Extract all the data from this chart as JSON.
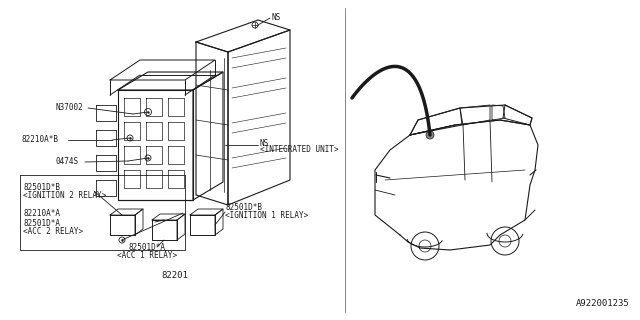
{
  "bg_color": "#ffffff",
  "line_color": "#1a1a1a",
  "part_number": "A922001235",
  "diagram_number": "82201",
  "fs": 5.5,
  "fs_small": 5.0,
  "fs_num": 6.5,
  "labels": {
    "NS_top": "NS",
    "NS_int": "NS",
    "integrated_unit": "<INTEGRATED UNIT>",
    "N37002": "N37002",
    "part_82210AB": "82210A*B",
    "part_0474S": "0474S",
    "part_82501DB_ign2": "82501D*B",
    "lbl_ign2": "<IGNITION 2 RELAY>",
    "part_82210AA": "82210A*A",
    "part_82501DA_acc2": "82501D*A",
    "lbl_acc2": "<ACC 2 RELAY>",
    "part_82501DB_ign1": "82501D*B",
    "lbl_ign1": "<IGNITION 1 RELAY>",
    "part_82501DA_acc1": "82501D*A",
    "lbl_acc1": "<ACC 1 RELAY>",
    "diagram_num": "82201"
  }
}
